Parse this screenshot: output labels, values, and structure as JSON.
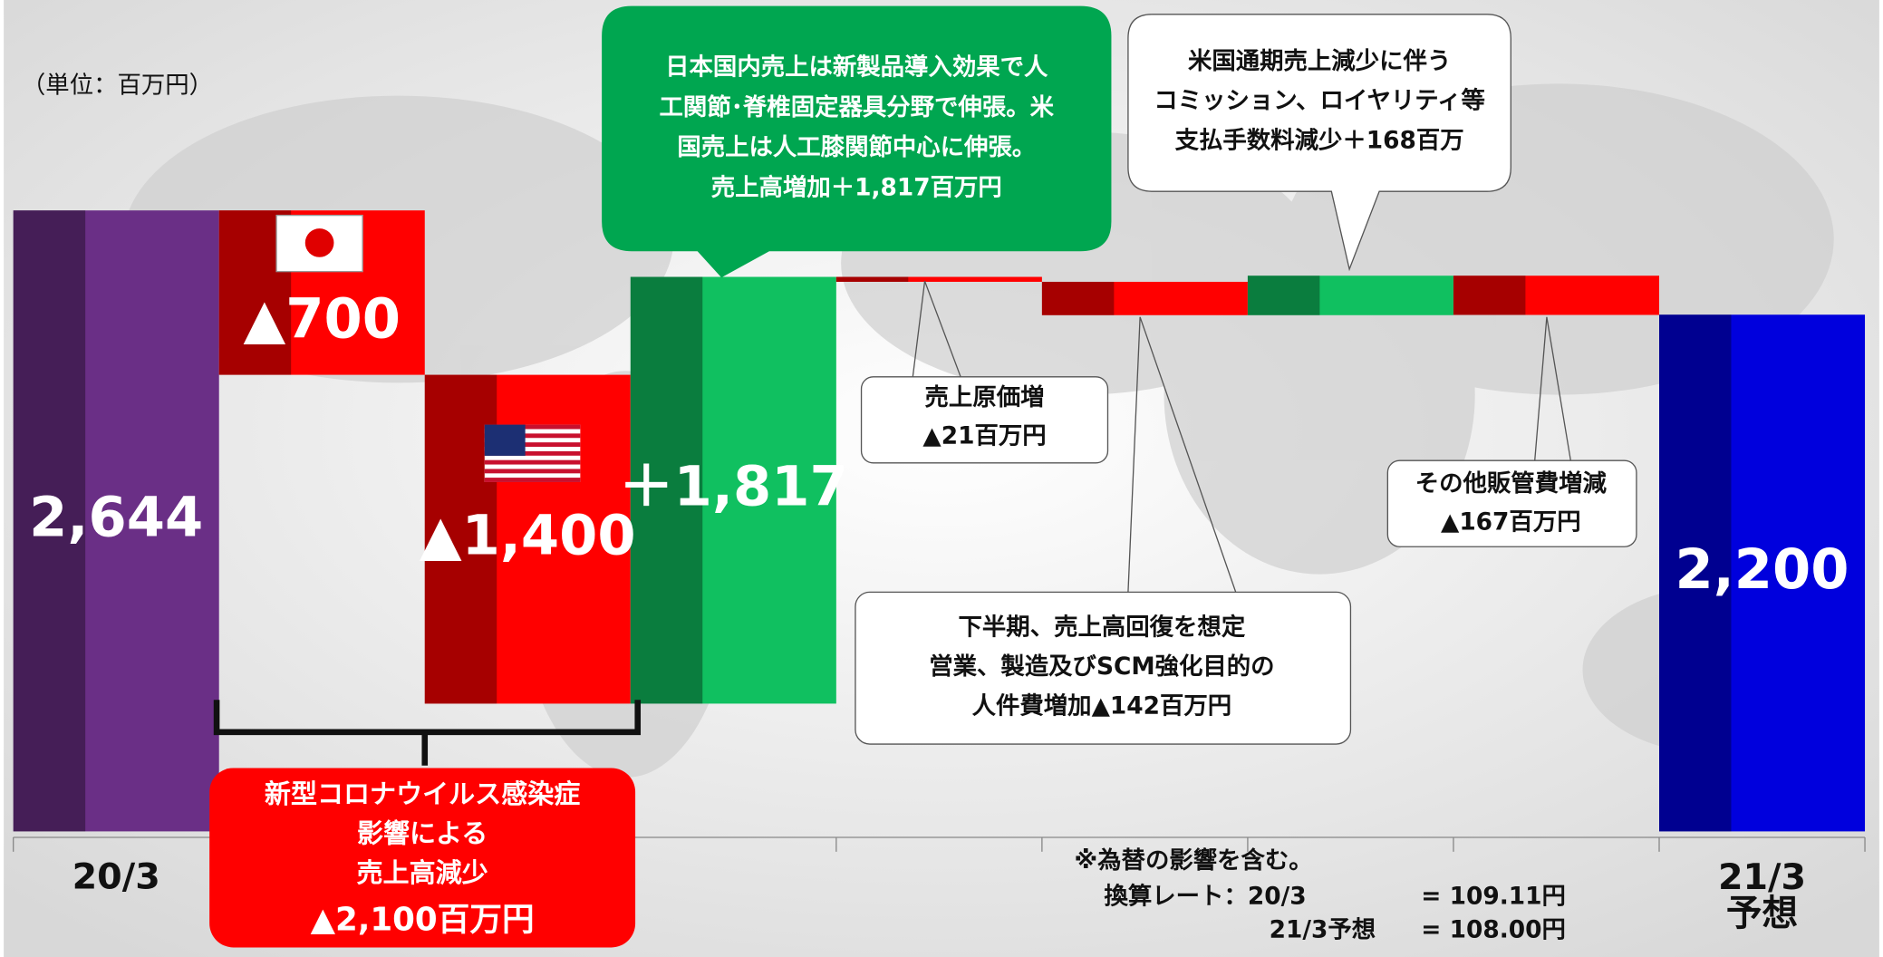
{
  "chart_data": {
    "type": "waterfall",
    "unit_note": "（単位：百万円）",
    "categories": [
      "20/3",
      null,
      null,
      null,
      null,
      null,
      null,
      null,
      "21/3 予想"
    ],
    "measures": [
      "total",
      "relative",
      "relative",
      "relative",
      "relative",
      "relative",
      "relative",
      "relative",
      "total"
    ],
    "values": [
      2644,
      -700,
      -1400,
      1817,
      -21,
      -142,
      168,
      -167,
      2200
    ],
    "value_labels": [
      "2,644",
      "▲700",
      "▲1,400",
      "＋1,817",
      null,
      null,
      null,
      null,
      "2,200"
    ],
    "colors": [
      "#6a2f86",
      "#ff0000",
      "#ff0000",
      "#10c060",
      "#ff0000",
      "#ff0000",
      "#10c060",
      "#ff0000",
      "#0000dd"
    ],
    "ylim": [
      0,
      3000
    ],
    "annotations": [
      {
        "lines": [
          "日本国内売上は新製品導入効果で人",
          "工関節･脊椎固定器具分野で伸張。米",
          "国売上は人工膝関節中心に伸張。",
          "売上高増加＋1,817百万円"
        ]
      },
      {
        "lines": [
          "米国通期売上減少に伴う",
          "コミッション、ロイヤリティ等",
          "支払手数料減少＋168百万"
        ]
      },
      {
        "lines": [
          "売上原価増",
          "▲21百万円"
        ]
      },
      {
        "lines": [
          "下半期、売上高回復を想定",
          "営業、製造及びSCM強化目的の",
          "人件費増加▲142百万円"
        ]
      },
      {
        "lines": [
          "その他販管費増減",
          "▲167百万円"
        ]
      },
      {
        "lines": [
          "新型コロナウイルス感染症",
          "影響による",
          "売上高減少",
          "▲2,100百万円"
        ]
      }
    ],
    "footnote": [
      "※為替の影響を含む。",
      "換算レート：20/3",
      "= 109.11円",
      "21/3予想",
      "= 108.00円"
    ]
  }
}
